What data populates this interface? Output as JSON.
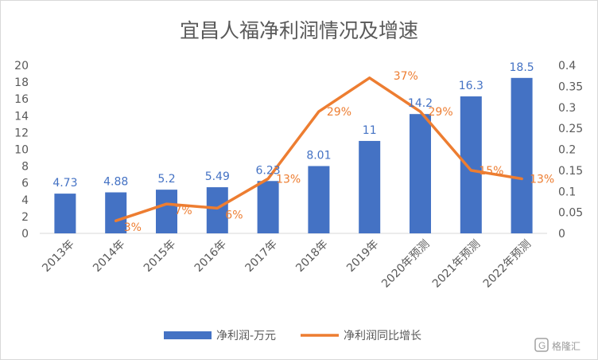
{
  "chart_data": {
    "type": "bar",
    "title": "宜昌人福净利润情况及增速",
    "categories": [
      "2013年",
      "2014年",
      "2015年",
      "2016年",
      "2017年",
      "2018年",
      "2019年",
      "2020年预测",
      "2021年预测",
      "2022年预测"
    ],
    "series": [
      {
        "name": "净利润-万元",
        "type": "bar",
        "axis": "left",
        "values": [
          4.73,
          4.88,
          5.2,
          5.49,
          6.23,
          8.01,
          11,
          14.2,
          16.3,
          18.5
        ],
        "labels": [
          "4.73",
          "4.88",
          "5.2",
          "5.49",
          "6.23",
          "8.01",
          "11",
          "14.2",
          "16.3",
          "18.5"
        ],
        "color": "#4472c4"
      },
      {
        "name": "净利润同比增长",
        "type": "line",
        "axis": "right",
        "values": [
          null,
          0.03,
          0.07,
          0.06,
          0.13,
          0.29,
          0.37,
          0.29,
          0.15,
          0.13
        ],
        "labels": [
          "",
          "3%",
          "7%",
          "6%",
          "13%",
          "29%",
          "37%",
          "29%",
          "15%",
          "13%"
        ],
        "color": "#ed7d31"
      }
    ],
    "y_left": {
      "min": 0,
      "max": 20,
      "ticks": [
        "0",
        "2",
        "4",
        "6",
        "8",
        "10",
        "12",
        "14",
        "16",
        "18",
        "20"
      ]
    },
    "y_right": {
      "min": 0,
      "max": 0.4,
      "ticks": [
        "0",
        "0.05",
        "0.1",
        "0.15",
        "0.2",
        "0.25",
        "0.3",
        "0.35",
        "0.4"
      ]
    },
    "grid": false,
    "legend_position": "bottom"
  },
  "watermark": "格隆汇"
}
